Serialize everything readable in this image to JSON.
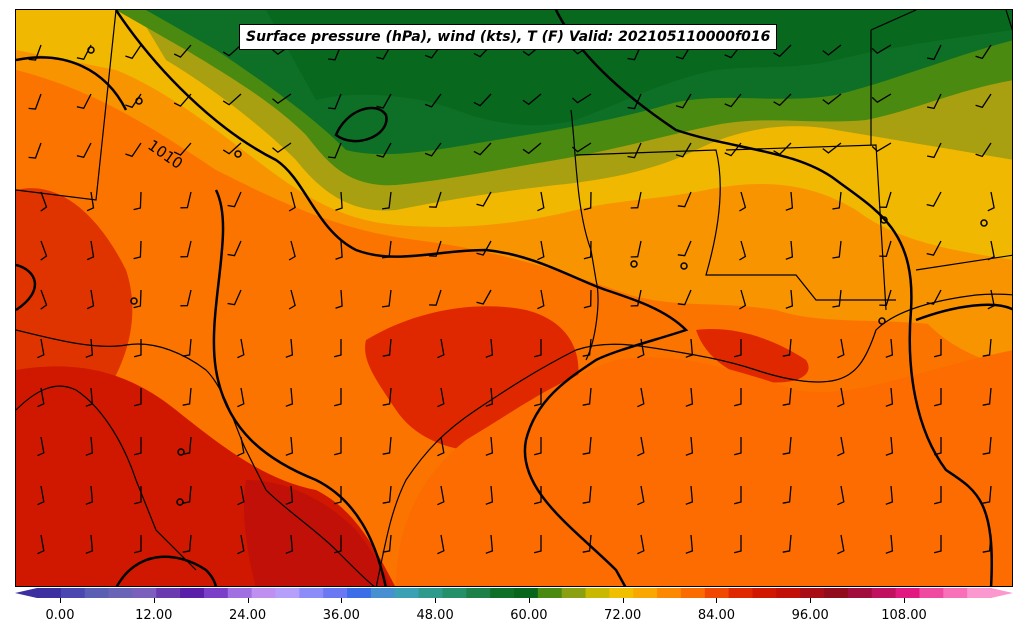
{
  "title": "Surface pressure (hPa), wind (kts), T (F) Valid: 202105110000f016",
  "contour_labels": [
    {
      "name": "isobar-label-1010",
      "text": "1010"
    }
  ],
  "colorbar": {
    "tick_labels": [
      "0.00",
      "12.00",
      "24.00",
      "36.00",
      "48.00",
      "60.00",
      "72.00",
      "84.00",
      "96.00",
      "108.00"
    ],
    "tick_values": [
      0,
      12,
      24,
      36,
      48,
      60,
      72,
      84,
      96,
      108
    ],
    "min": -6,
    "max": 124,
    "units": "F",
    "colors": [
      "#3c2fa0",
      "#4a48b0",
      "#5a5fb4",
      "#6a64b6",
      "#7a5fbc",
      "#6a3aaf",
      "#5a1fa8",
      "#7a3ec8",
      "#a070e0",
      "#c090f0",
      "#b4a0fa",
      "#8c8cf8",
      "#6a78f4",
      "#3c6ee8",
      "#4690d2",
      "#3aa0b4",
      "#2d9a8c",
      "#24906a",
      "#1c8048",
      "#0e7026",
      "#08661c",
      "#4a8a10",
      "#8aa010",
      "#c8b800",
      "#f0c000",
      "#f8a800",
      "#fc8800",
      "#fa6c00",
      "#f04800",
      "#e02800",
      "#d01800",
      "#c01008",
      "#a80c14",
      "#900c1c",
      "#a00c3c",
      "#c01060",
      "#e01880",
      "#f04aa0",
      "#f870b8",
      "#fc98d0"
    ]
  },
  "map": {
    "field": "surface temperature (F)",
    "overlays": [
      "surface pressure isobars",
      "wind barbs",
      "state and national boundaries",
      "coastline"
    ]
  }
}
